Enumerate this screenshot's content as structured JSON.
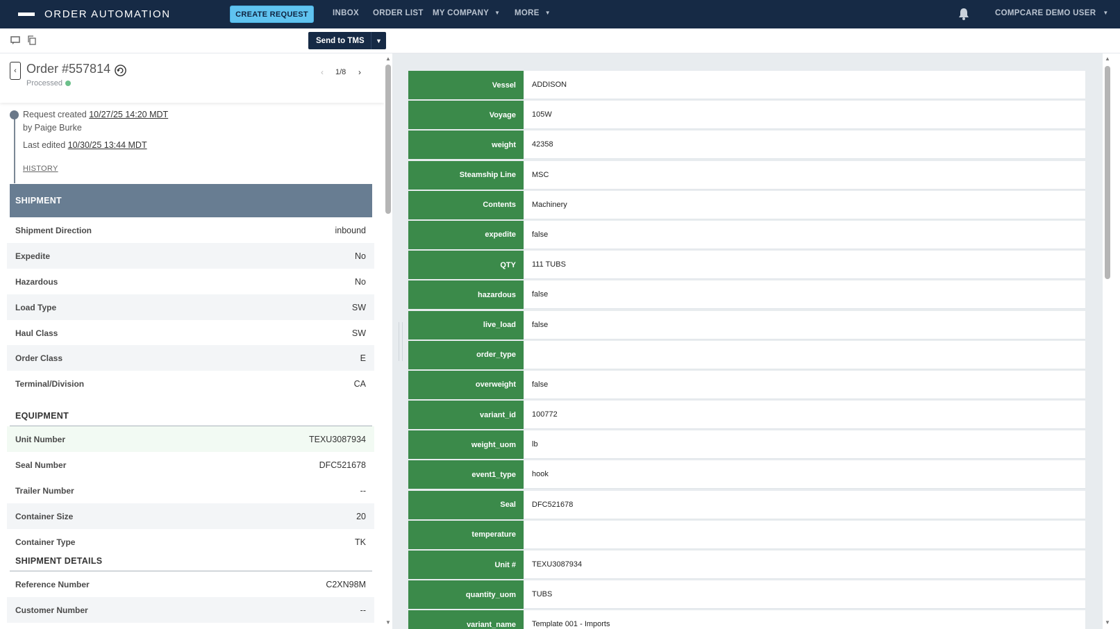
{
  "nav": {
    "brand": "ORDER AUTOMATION",
    "create_button": "CREATE REQUEST",
    "items": [
      "INBOX",
      "ORDER LIST",
      "MY COMPANY",
      "MORE"
    ],
    "user": "COMPCARE DEMO USER"
  },
  "toolbar": {
    "send_button": "Send to TMS"
  },
  "order": {
    "title": "Order #557814",
    "status": "Processed",
    "pager": "1/8"
  },
  "timeline": {
    "created_prefix": "Request created ",
    "created_at": "10/27/25 14:20 MDT",
    "created_by": "by Paige Burke",
    "edited_prefix": "Last edited ",
    "edited_at": "10/30/25 13:44 MDT",
    "history": "HISTORY"
  },
  "shipment": {
    "title": "SHIPMENT",
    "rows": [
      {
        "k": "Shipment Direction",
        "v": "inbound"
      },
      {
        "k": "Expedite",
        "v": "No"
      },
      {
        "k": "Hazardous",
        "v": "No"
      },
      {
        "k": "Load Type",
        "v": "SW"
      },
      {
        "k": "Haul Class",
        "v": "SW"
      },
      {
        "k": "Order Class",
        "v": "E"
      },
      {
        "k": "Terminal/Division",
        "v": "CA"
      }
    ]
  },
  "equipment": {
    "title": "EQUIPMENT",
    "rows": [
      {
        "k": "Unit Number",
        "v": "TEXU3087934"
      },
      {
        "k": "Seal Number",
        "v": "DFC521678"
      },
      {
        "k": "Trailer Number",
        "v": "--"
      },
      {
        "k": "Container Size",
        "v": "20"
      },
      {
        "k": "Container Type",
        "v": "TK"
      }
    ]
  },
  "shipment_details": {
    "title": "SHIPMENT DETAILS",
    "rows": [
      {
        "k": "Reference Number",
        "v": "C2XN98M"
      },
      {
        "k": "Customer Number",
        "v": "--"
      }
    ]
  },
  "extracted": [
    {
      "k": "Vessel",
      "v": "ADDISON"
    },
    {
      "k": "Voyage",
      "v": "105W"
    },
    {
      "k": "weight",
      "v": "42358"
    },
    {
      "k": "Steamship Line",
      "v": "MSC"
    },
    {
      "k": "Contents",
      "v": "Machinery"
    },
    {
      "k": "expedite",
      "v": "false"
    },
    {
      "k": "QTY",
      "v": "111 TUBS"
    },
    {
      "k": "hazardous",
      "v": "false"
    },
    {
      "k": "live_load",
      "v": "false"
    },
    {
      "k": "order_type",
      "v": ""
    },
    {
      "k": "overweight",
      "v": "false"
    },
    {
      "k": "variant_id",
      "v": "100772"
    },
    {
      "k": "weight_uom",
      "v": "lb"
    },
    {
      "k": "event1_type",
      "v": "hook"
    },
    {
      "k": "Seal",
      "v": "DFC521678"
    },
    {
      "k": "temperature",
      "v": ""
    },
    {
      "k": "Unit #",
      "v": "TEXU3087934"
    },
    {
      "k": "quantity_uom",
      "v": "TUBS"
    },
    {
      "k": "variant_name",
      "v": "Template 001 - Imports"
    }
  ],
  "colors": {
    "nav_bg": "#162a45",
    "accent": "#5fc3f0",
    "key_green": "#3b8a4a",
    "section_bar": "#687d92",
    "status_green": "#6cc08b"
  }
}
